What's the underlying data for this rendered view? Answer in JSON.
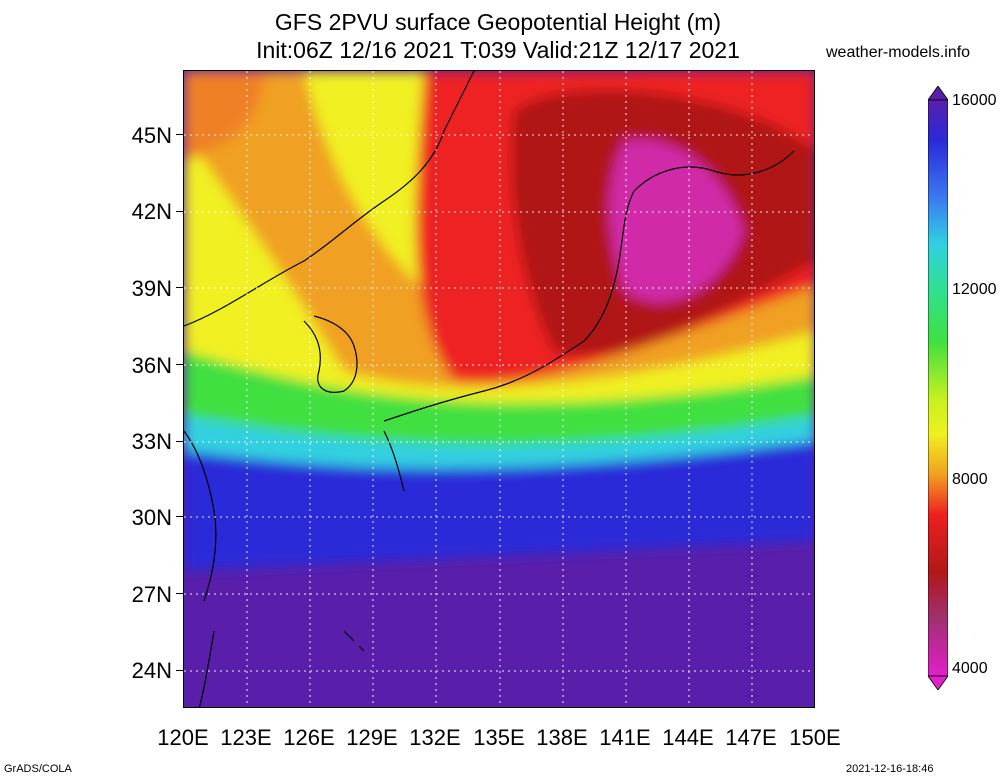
{
  "title_line1": "GFS 2PVU surface Geopotential Height (m)",
  "title_line2": "Init:06Z 12/16 2021 T:039 Valid:21Z 12/17 2021",
  "site": "weather-models.info",
  "lat_labels": [
    "45N",
    "42N",
    "39N",
    "36N",
    "33N",
    "30N",
    "27N",
    "24N"
  ],
  "lon_labels": [
    "120E",
    "123E",
    "126E",
    "129E",
    "132E",
    "135E",
    "138E",
    "141E",
    "144E",
    "147E",
    "150E"
  ],
  "colorbar_labels": [
    "16000",
    "12000",
    "8000",
    "4000"
  ],
  "colors": {
    "deep_violet": "#5a1faa",
    "blue": "#2a2ad8",
    "cyan": "#30d0e0",
    "green": "#40e040",
    "yellow": "#f0f020",
    "orange": "#f0a020",
    "red": "#ee2020",
    "dark_red": "#b01818",
    "magenta": "#e020c8"
  },
  "footer_left": "GrADS/COLA",
  "footer_right": "2021-12-16-18:46"
}
